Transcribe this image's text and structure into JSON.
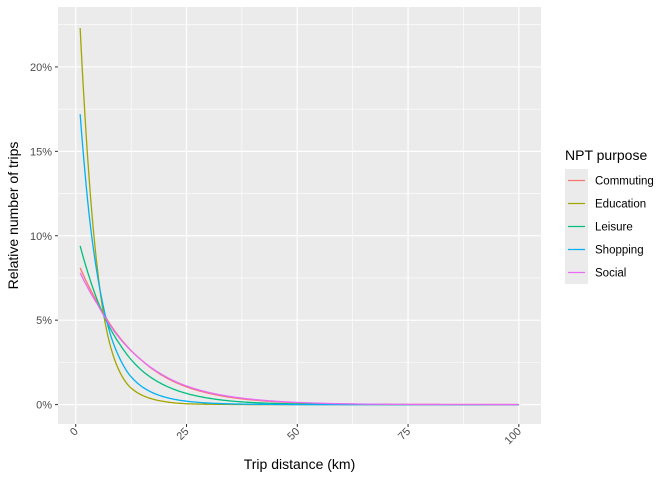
{
  "chart_data": {
    "type": "line",
    "xlabel": "Trip distance (km)",
    "ylabel": "Relative number of trips",
    "xlim": [
      -4,
      105
    ],
    "ylim": [
      -0.0115,
      0.2355
    ],
    "x_ticks": [
      0,
      25,
      50,
      75,
      100
    ],
    "x_tick_labels": [
      "0",
      "25",
      "50",
      "75",
      "100"
    ],
    "y_ticks": [
      0,
      0.05,
      0.1,
      0.15,
      0.2
    ],
    "y_tick_labels": [
      "0%",
      "5%",
      "10%",
      "15%",
      "20%"
    ],
    "grid": true,
    "legend": {
      "title": "NPT purpose",
      "position": "right"
    },
    "series": [
      {
        "name": "Commuting",
        "color": "#F8766D",
        "x": [
          1,
          5,
          10,
          15,
          20,
          25,
          30,
          40,
          50,
          60,
          75,
          100
        ],
        "y": [
          0.081,
          0.06,
          0.0395,
          0.026,
          0.0165,
          0.0105,
          0.0067,
          0.0027,
          0.0011,
          0.0004,
          0.0001,
          0.0
        ]
      },
      {
        "name": "Education",
        "color": "#A3A500",
        "x": [
          1,
          2,
          3,
          4,
          5,
          6,
          8,
          10,
          12,
          15,
          20,
          25,
          30,
          40,
          50,
          75,
          100
        ],
        "y": [
          0.223,
          0.175,
          0.135,
          0.103,
          0.078,
          0.058,
          0.033,
          0.019,
          0.011,
          0.0055,
          0.0018,
          0.0005,
          0.0002,
          0.0,
          0.0,
          0.0,
          0.0
        ]
      },
      {
        "name": "Leisure",
        "color": "#00BF7D",
        "x": [
          1,
          3,
          5,
          7,
          10,
          15,
          20,
          25,
          30,
          40,
          50,
          60,
          75,
          100
        ],
        "y": [
          0.094,
          0.076,
          0.061,
          0.049,
          0.0355,
          0.02,
          0.0115,
          0.0066,
          0.0038,
          0.0012,
          0.0004,
          0.0001,
          0.0,
          0.0
        ]
      },
      {
        "name": "Shopping",
        "color": "#00B0F6",
        "x": [
          1,
          2,
          3,
          4,
          5,
          6,
          8,
          10,
          12,
          15,
          20,
          25,
          30,
          40,
          50,
          75,
          100
        ],
        "y": [
          0.172,
          0.14,
          0.113,
          0.092,
          0.075,
          0.061,
          0.04,
          0.027,
          0.018,
          0.0105,
          0.0045,
          0.002,
          0.0009,
          0.0002,
          0.0,
          0.0,
          0.0
        ]
      },
      {
        "name": "Social",
        "color": "#E76BF3",
        "x": [
          1,
          5,
          10,
          15,
          20,
          25,
          30,
          40,
          50,
          60,
          75,
          100
        ],
        "y": [
          0.078,
          0.059,
          0.039,
          0.026,
          0.017,
          0.011,
          0.0072,
          0.0031,
          0.0013,
          0.0005,
          0.0001,
          0.0
        ]
      }
    ]
  }
}
